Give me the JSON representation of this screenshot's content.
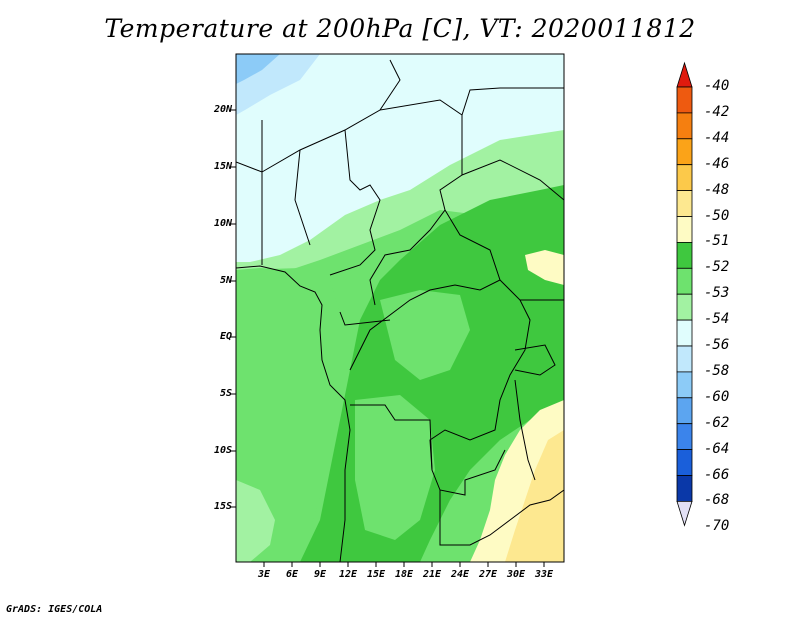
{
  "title": "Temperature at 200hPa [C], VT: 2020011812",
  "footer": "GrADS: IGES/COLA",
  "lat_labels": [
    "20N",
    "15N",
    "10N",
    "5N",
    "EQ",
    "5S",
    "10S",
    "15S"
  ],
  "lon_labels": [
    "3E",
    "6E",
    "9E",
    "12E",
    "15E",
    "18E",
    "21E",
    "24E",
    "27E",
    "30E",
    "33E"
  ],
  "legend": {
    "labels": [
      "-40",
      "-42",
      "-44",
      "-46",
      "-48",
      "-50",
      "-51",
      "-52",
      "-53",
      "-54",
      "-56",
      "-58",
      "-60",
      "-62",
      "-64",
      "-66",
      "-68",
      "-70"
    ],
    "colors": [
      "#e02010",
      "#ee5a10",
      "#f57f10",
      "#fba318",
      "#fcc94a",
      "#fde890",
      "#fefbc4",
      "#3fc83f",
      "#6ee26e",
      "#a2f2a2",
      "#e0fdfd",
      "#c1e8fc",
      "#8ccbf7",
      "#5ca5f0",
      "#3b84eb",
      "#1a5fda",
      "#0a38a8",
      "#0a0a70"
    ],
    "top_arrow_color": "#e01a0e",
    "bottom_arrow_color": "#e2e0f5"
  }
}
